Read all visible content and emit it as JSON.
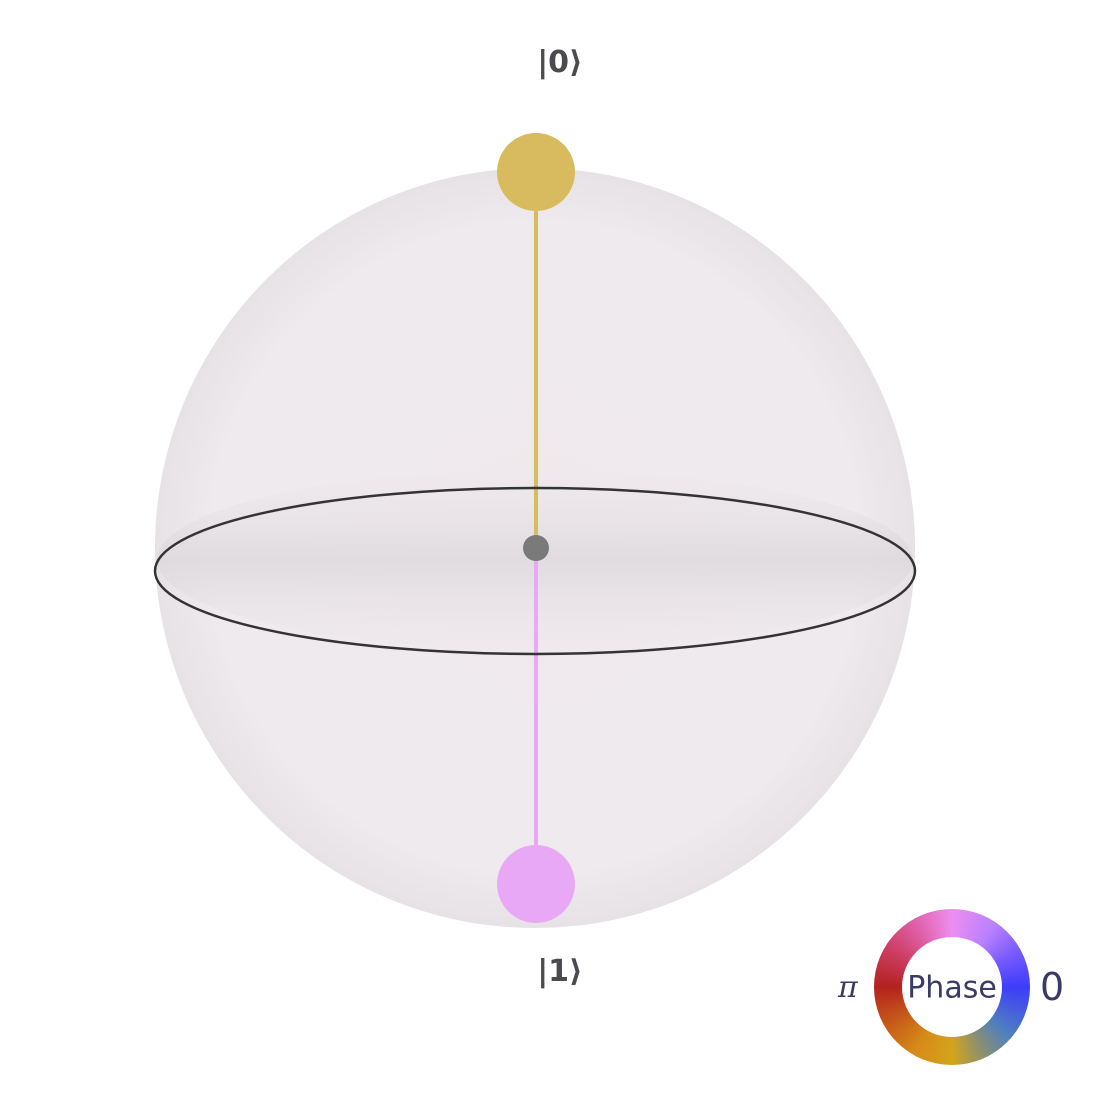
{
  "states": [
    {
      "label": "|0⟩",
      "probability": 0.5,
      "phase": "0",
      "color": "#d8bb5e"
    },
    {
      "label": "|1⟩",
      "probability": 0.5,
      "phase": "π",
      "color": "#e9a8f5"
    }
  ],
  "sphere": {
    "color": "#f1edf0",
    "equator_color": "#333333",
    "center_color": "#7a7a7a"
  },
  "legend": {
    "title": "Phase",
    "left_label": "π",
    "right_label": "0"
  }
}
